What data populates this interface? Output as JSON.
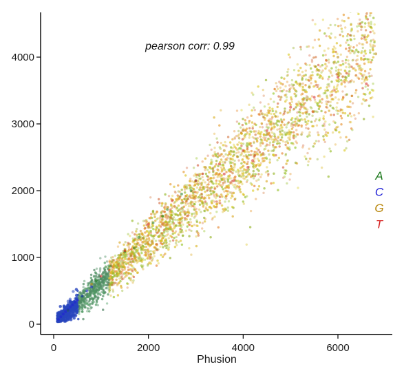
{
  "chart_data": {
    "type": "scatter",
    "xlabel": "Phusion",
    "ylabel": "",
    "xlim": [
      -250,
      7200
    ],
    "ylim": [
      -150,
      4650
    ],
    "x_ticks": [
      0,
      2000,
      4000,
      6000
    ],
    "y_ticks": [
      0,
      1000,
      2000,
      3000,
      4000
    ],
    "x_tick_labels": [
      "0",
      "2000",
      "4000",
      "6000"
    ],
    "y_tick_labels": [
      "0",
      "1000",
      "2000",
      "3000",
      "4000"
    ],
    "annotation": "pearson corr: 0.99",
    "grid": false,
    "legend_position": "right",
    "series": [
      {
        "name": "A",
        "color": "#1e7a1e",
        "points": [
          [
            300,
            210
          ],
          [
            600,
            420
          ],
          [
            900,
            650
          ],
          [
            1200,
            870
          ],
          [
            1500,
            1080
          ],
          [
            1800,
            1300
          ],
          [
            2100,
            1520
          ],
          [
            2400,
            1720
          ],
          [
            2700,
            1950
          ],
          [
            3000,
            2150
          ],
          [
            1100,
            860
          ],
          [
            1700,
            1140
          ],
          [
            2300,
            1620
          ],
          [
            2900,
            2000
          ]
        ]
      },
      {
        "name": "C",
        "color": "#1f1fd6",
        "points": [
          [
            100,
            70
          ],
          [
            150,
            110
          ],
          [
            200,
            150
          ],
          [
            250,
            190
          ],
          [
            300,
            220
          ],
          [
            350,
            260
          ],
          [
            400,
            290
          ],
          [
            500,
            360
          ],
          [
            600,
            420
          ],
          [
            700,
            500
          ],
          [
            800,
            560
          ],
          [
            450,
            330
          ]
        ]
      },
      {
        "name": "G",
        "color": "#b8860b",
        "points": [
          [
            800,
            600
          ],
          [
            1200,
            900
          ],
          [
            1600,
            1200
          ],
          [
            2000,
            1450
          ],
          [
            2400,
            1750
          ],
          [
            2800,
            2050
          ],
          [
            3200,
            2350
          ],
          [
            3600,
            2600
          ],
          [
            4000,
            2900
          ],
          [
            4400,
            3150
          ],
          [
            4800,
            3400
          ],
          [
            5200,
            3600
          ],
          [
            5600,
            3800
          ],
          [
            6000,
            4000
          ],
          [
            6500,
            4450
          ],
          [
            6800,
            4050
          ],
          [
            6600,
            3700
          ],
          [
            6000,
            3750
          ],
          [
            5400,
            3550
          ]
        ]
      },
      {
        "name": "T",
        "color": "#d62020",
        "points": [
          [
            1000,
            720
          ],
          [
            1500,
            1100
          ],
          [
            2000,
            1500
          ],
          [
            2500,
            1850
          ],
          [
            3000,
            2150
          ],
          [
            3500,
            2400
          ],
          [
            3800,
            2150
          ],
          [
            4000,
            2600
          ],
          [
            4200,
            2450
          ],
          [
            4500,
            2900
          ],
          [
            5000,
            3250
          ],
          [
            5500,
            3400
          ],
          [
            6000,
            3700
          ],
          [
            6600,
            3600
          ],
          [
            3600,
            2250
          ],
          [
            4100,
            2350
          ]
        ]
      }
    ]
  }
}
